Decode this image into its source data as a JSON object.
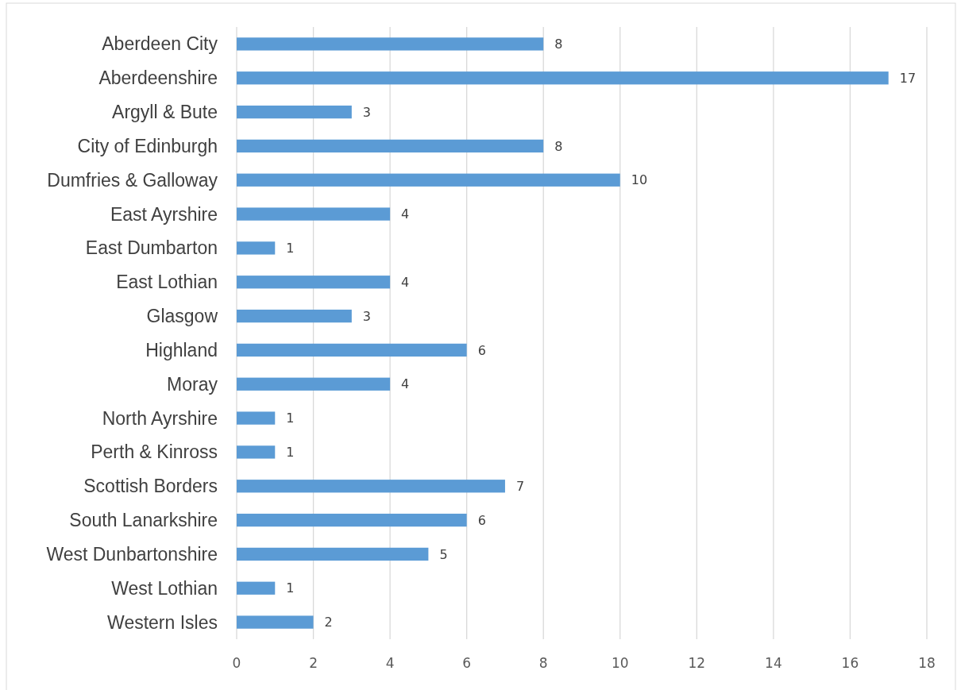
{
  "chart_data": {
    "type": "bar",
    "orientation": "horizontal",
    "categories": [
      "Aberdeen City",
      "Aberdeenshire",
      "Argyll & Bute",
      "City of Edinburgh",
      "Dumfries & Galloway",
      "East Ayrshire",
      "East Dumbarton",
      "East Lothian",
      "Glasgow",
      "Highland",
      "Moray",
      "North Ayrshire",
      "Perth & Kinross",
      "Scottish Borders",
      "South Lanarkshire",
      "West Dunbartonshire",
      "West Lothian",
      "Western Isles"
    ],
    "values": [
      8,
      17,
      3,
      8,
      10,
      4,
      1,
      4,
      3,
      6,
      4,
      1,
      1,
      7,
      6,
      5,
      1,
      2
    ],
    "color": "#5b9bd5",
    "xlim": [
      0,
      18
    ],
    "xticks": [
      0,
      2,
      4,
      6,
      8,
      10,
      12,
      14,
      16,
      18
    ],
    "grid": "x",
    "data_labels": true
  }
}
